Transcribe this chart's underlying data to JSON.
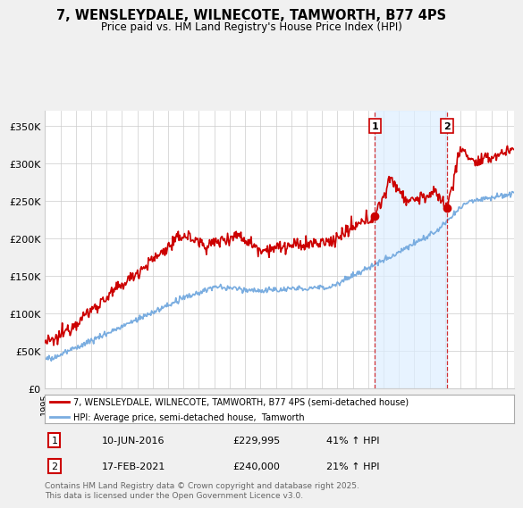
{
  "title": "7, WENSLEYDALE, WILNECOTE, TAMWORTH, B77 4PS",
  "subtitle": "Price paid vs. HM Land Registry's House Price Index (HPI)",
  "ylabel_ticks": [
    "£0",
    "£50K",
    "£100K",
    "£150K",
    "£200K",
    "£250K",
    "£300K",
    "£350K"
  ],
  "ytick_values": [
    0,
    50000,
    100000,
    150000,
    200000,
    250000,
    300000,
    350000
  ],
  "ylim": [
    0,
    370000
  ],
  "red_color": "#cc0000",
  "blue_color": "#7aade0",
  "blue_fill_color": "#ddeeff",
  "marker1_year": 2016.44,
  "marker2_year": 2021.12,
  "marker1_price": 229995,
  "marker2_price": 240000,
  "legend_line1": "7, WENSLEYDALE, WILNECOTE, TAMWORTH, B77 4PS (semi-detached house)",
  "legend_line2": "HPI: Average price, semi-detached house,  Tamworth",
  "table_row1": [
    "1",
    "10-JUN-2016",
    "£229,995",
    "41% ↑ HPI"
  ],
  "table_row2": [
    "2",
    "17-FEB-2021",
    "£240,000",
    "21% ↑ HPI"
  ],
  "footnote": "Contains HM Land Registry data © Crown copyright and database right 2025.\nThis data is licensed under the Open Government Licence v3.0.",
  "bg_color": "#f0f0f0",
  "plot_bg_color": "#ffffff",
  "grid_color": "#cccccc"
}
